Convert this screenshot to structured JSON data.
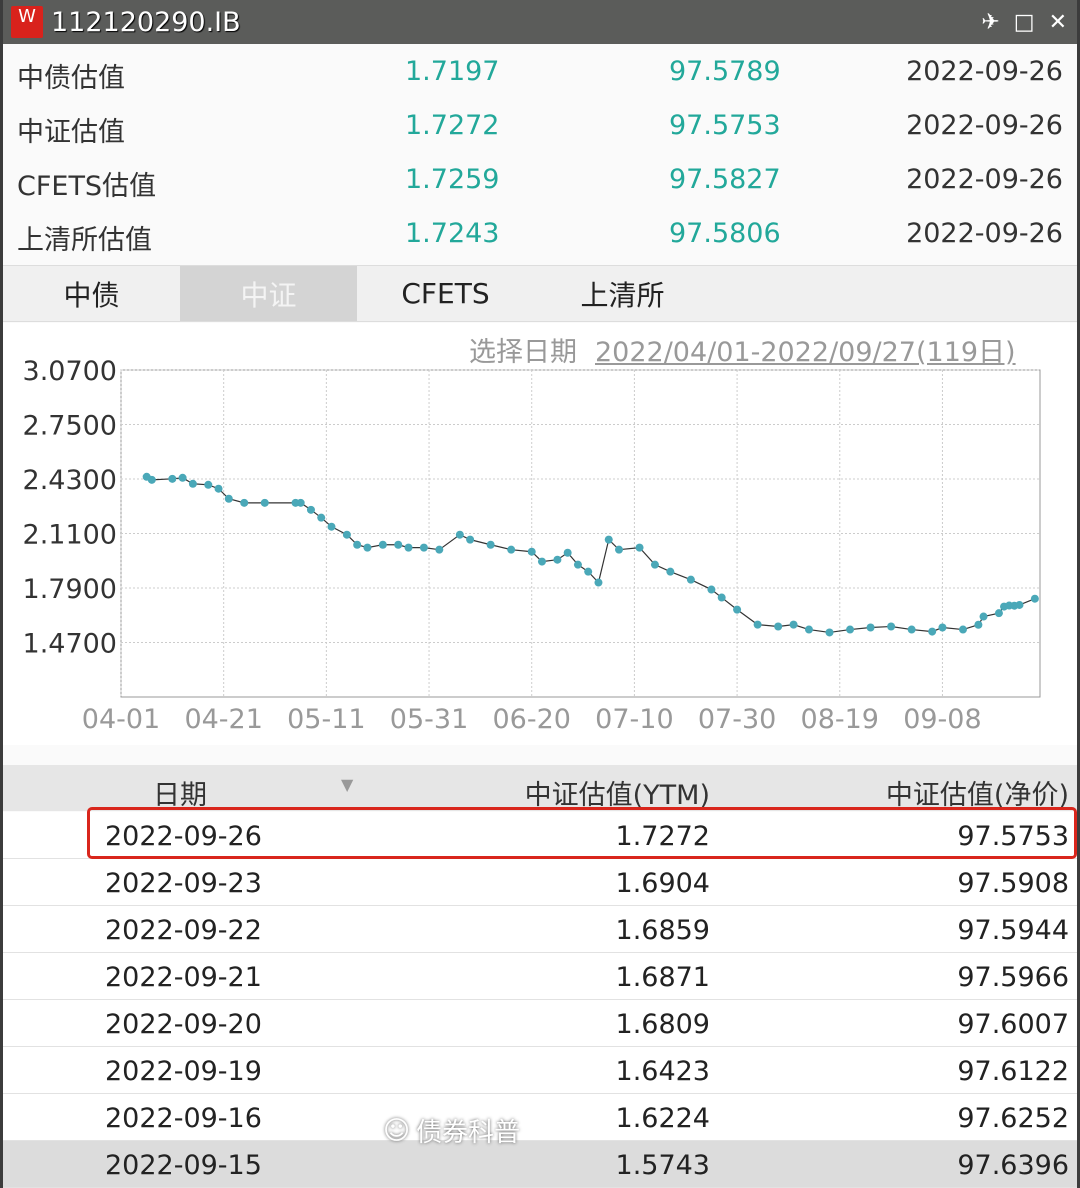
{
  "window": {
    "title": "112120290.IB",
    "logo": "W",
    "icons": [
      "pin-icon",
      "maximize-icon",
      "close-icon"
    ]
  },
  "valuations": [
    {
      "label": "中债估值",
      "ytm": "1.7197",
      "price": "97.5789",
      "date": "2022-09-26"
    },
    {
      "label": "中证估值",
      "ytm": "1.7272",
      "price": "97.5753",
      "date": "2022-09-26"
    },
    {
      "label": "CFETS估值",
      "ytm": "1.7259",
      "price": "97.5827",
      "date": "2022-09-26"
    },
    {
      "label": "上清所估值",
      "ytm": "1.7243",
      "price": "97.5806",
      "date": "2022-09-26"
    }
  ],
  "tabs": [
    {
      "label": "中债"
    },
    {
      "label": "中证",
      "active": true
    },
    {
      "label": "CFETS"
    },
    {
      "label": "上清所"
    }
  ],
  "date_selector": {
    "label": "选择日期",
    "range": "2022/04/01-2022/09/27(119日)"
  },
  "chart_data": {
    "type": "line",
    "x_range": [
      "2022-04-01",
      "2022-09-27"
    ],
    "ylim": [
      1.15,
      3.07
    ],
    "x_ticks": [
      "04-01",
      "04-21",
      "05-11",
      "05-31",
      "06-20",
      "07-10",
      "07-30",
      "08-19",
      "09-08"
    ],
    "y_ticks": [
      "3.0700",
      "2.7500",
      "2.4300",
      "2.1100",
      "1.7900",
      "1.4700"
    ],
    "grid": true,
    "line_color": "#333333",
    "marker_color": "#4aa8b8",
    "points": [
      [
        "2022-04-06",
        2.443
      ],
      [
        "2022-04-07",
        2.425
      ],
      [
        "2022-04-11",
        2.431
      ],
      [
        "2022-04-13",
        2.437
      ],
      [
        "2022-04-15",
        2.402
      ],
      [
        "2022-04-18",
        2.396
      ],
      [
        "2022-04-20",
        2.373
      ],
      [
        "2022-04-22",
        2.314
      ],
      [
        "2022-04-25",
        2.29
      ],
      [
        "2022-04-29",
        2.29
      ],
      [
        "2022-05-05",
        2.29
      ],
      [
        "2022-05-06",
        2.29
      ],
      [
        "2022-05-08",
        2.249
      ],
      [
        "2022-05-10",
        2.203
      ],
      [
        "2022-05-12",
        2.15
      ],
      [
        "2022-05-15",
        2.103
      ],
      [
        "2022-05-17",
        2.044
      ],
      [
        "2022-05-19",
        2.027
      ],
      [
        "2022-05-22",
        2.044
      ],
      [
        "2022-05-25",
        2.044
      ],
      [
        "2022-05-27",
        2.027
      ],
      [
        "2022-05-30",
        2.027
      ],
      [
        "2022-06-02",
        2.015
      ],
      [
        "2022-06-06",
        2.103
      ],
      [
        "2022-06-08",
        2.074
      ],
      [
        "2022-06-12",
        2.044
      ],
      [
        "2022-06-16",
        2.015
      ],
      [
        "2022-06-20",
        2.003
      ],
      [
        "2022-06-22",
        1.945
      ],
      [
        "2022-06-25",
        1.956
      ],
      [
        "2022-06-27",
        1.997
      ],
      [
        "2022-06-29",
        1.927
      ],
      [
        "2022-07-01",
        1.886
      ],
      [
        "2022-07-03",
        1.822
      ],
      [
        "2022-07-05",
        2.074
      ],
      [
        "2022-07-07",
        2.015
      ],
      [
        "2022-07-11",
        2.027
      ],
      [
        "2022-07-14",
        1.927
      ],
      [
        "2022-07-17",
        1.886
      ],
      [
        "2022-07-21",
        1.839
      ],
      [
        "2022-07-25",
        1.781
      ],
      [
        "2022-07-27",
        1.734
      ],
      [
        "2022-07-30",
        1.663
      ],
      [
        "2022-08-03",
        1.575
      ],
      [
        "2022-08-07",
        1.564
      ],
      [
        "2022-08-10",
        1.575
      ],
      [
        "2022-08-13",
        1.546
      ],
      [
        "2022-08-17",
        1.529
      ],
      [
        "2022-08-21",
        1.546
      ],
      [
        "2022-08-25",
        1.558
      ],
      [
        "2022-08-29",
        1.564
      ],
      [
        "2022-09-02",
        1.546
      ],
      [
        "2022-09-06",
        1.534
      ],
      [
        "2022-09-08",
        1.558
      ],
      [
        "2022-09-12",
        1.546
      ],
      [
        "2022-09-15",
        1.5743
      ],
      [
        "2022-09-16",
        1.6224
      ],
      [
        "2022-09-19",
        1.6423
      ],
      [
        "2022-09-20",
        1.6809
      ],
      [
        "2022-09-21",
        1.6871
      ],
      [
        "2022-09-22",
        1.6859
      ],
      [
        "2022-09-23",
        1.6904
      ],
      [
        "2022-09-26",
        1.7272
      ]
    ]
  },
  "table": {
    "headers": [
      "日期",
      "中证估值(YTM)",
      "中证估值(净价)"
    ],
    "rows": [
      [
        "2022-09-26",
        "1.7272",
        "97.5753"
      ],
      [
        "2022-09-23",
        "1.6904",
        "97.5908"
      ],
      [
        "2022-09-22",
        "1.6859",
        "97.5944"
      ],
      [
        "2022-09-21",
        "1.6871",
        "97.5966"
      ],
      [
        "2022-09-20",
        "1.6809",
        "97.6007"
      ],
      [
        "2022-09-19",
        "1.6423",
        "97.6122"
      ],
      [
        "2022-09-16",
        "1.6224",
        "97.6252"
      ],
      [
        "2022-09-15",
        "1.5743",
        "97.6396"
      ]
    ],
    "highlight_color": "#d9261c"
  },
  "watermark": "债券科普"
}
